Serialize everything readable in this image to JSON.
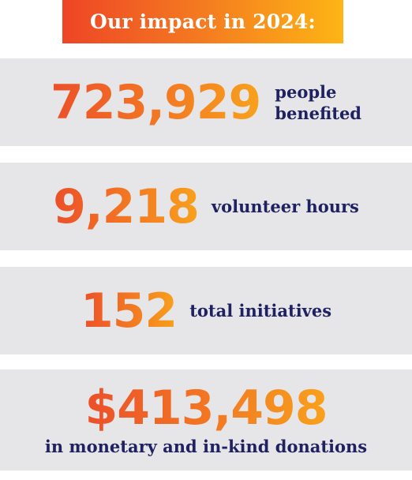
{
  "title": "Our impact in 2024:",
  "stats": [
    {
      "value": "723,929",
      "label_line1": "people",
      "label_line2": "benefited"
    },
    {
      "value": "9,218",
      "label": "volunteer hours"
    },
    {
      "value": "152",
      "label": "total initiatives"
    },
    {
      "value": "$413,498",
      "label": "in monetary and in-kind donations"
    }
  ],
  "colors": {
    "gradient_start": "#ee4526",
    "gradient_end": "#fdb515",
    "panel_background": "#e6e6e8",
    "label_navy": "#1f2160",
    "title_text": "#ffffff"
  }
}
